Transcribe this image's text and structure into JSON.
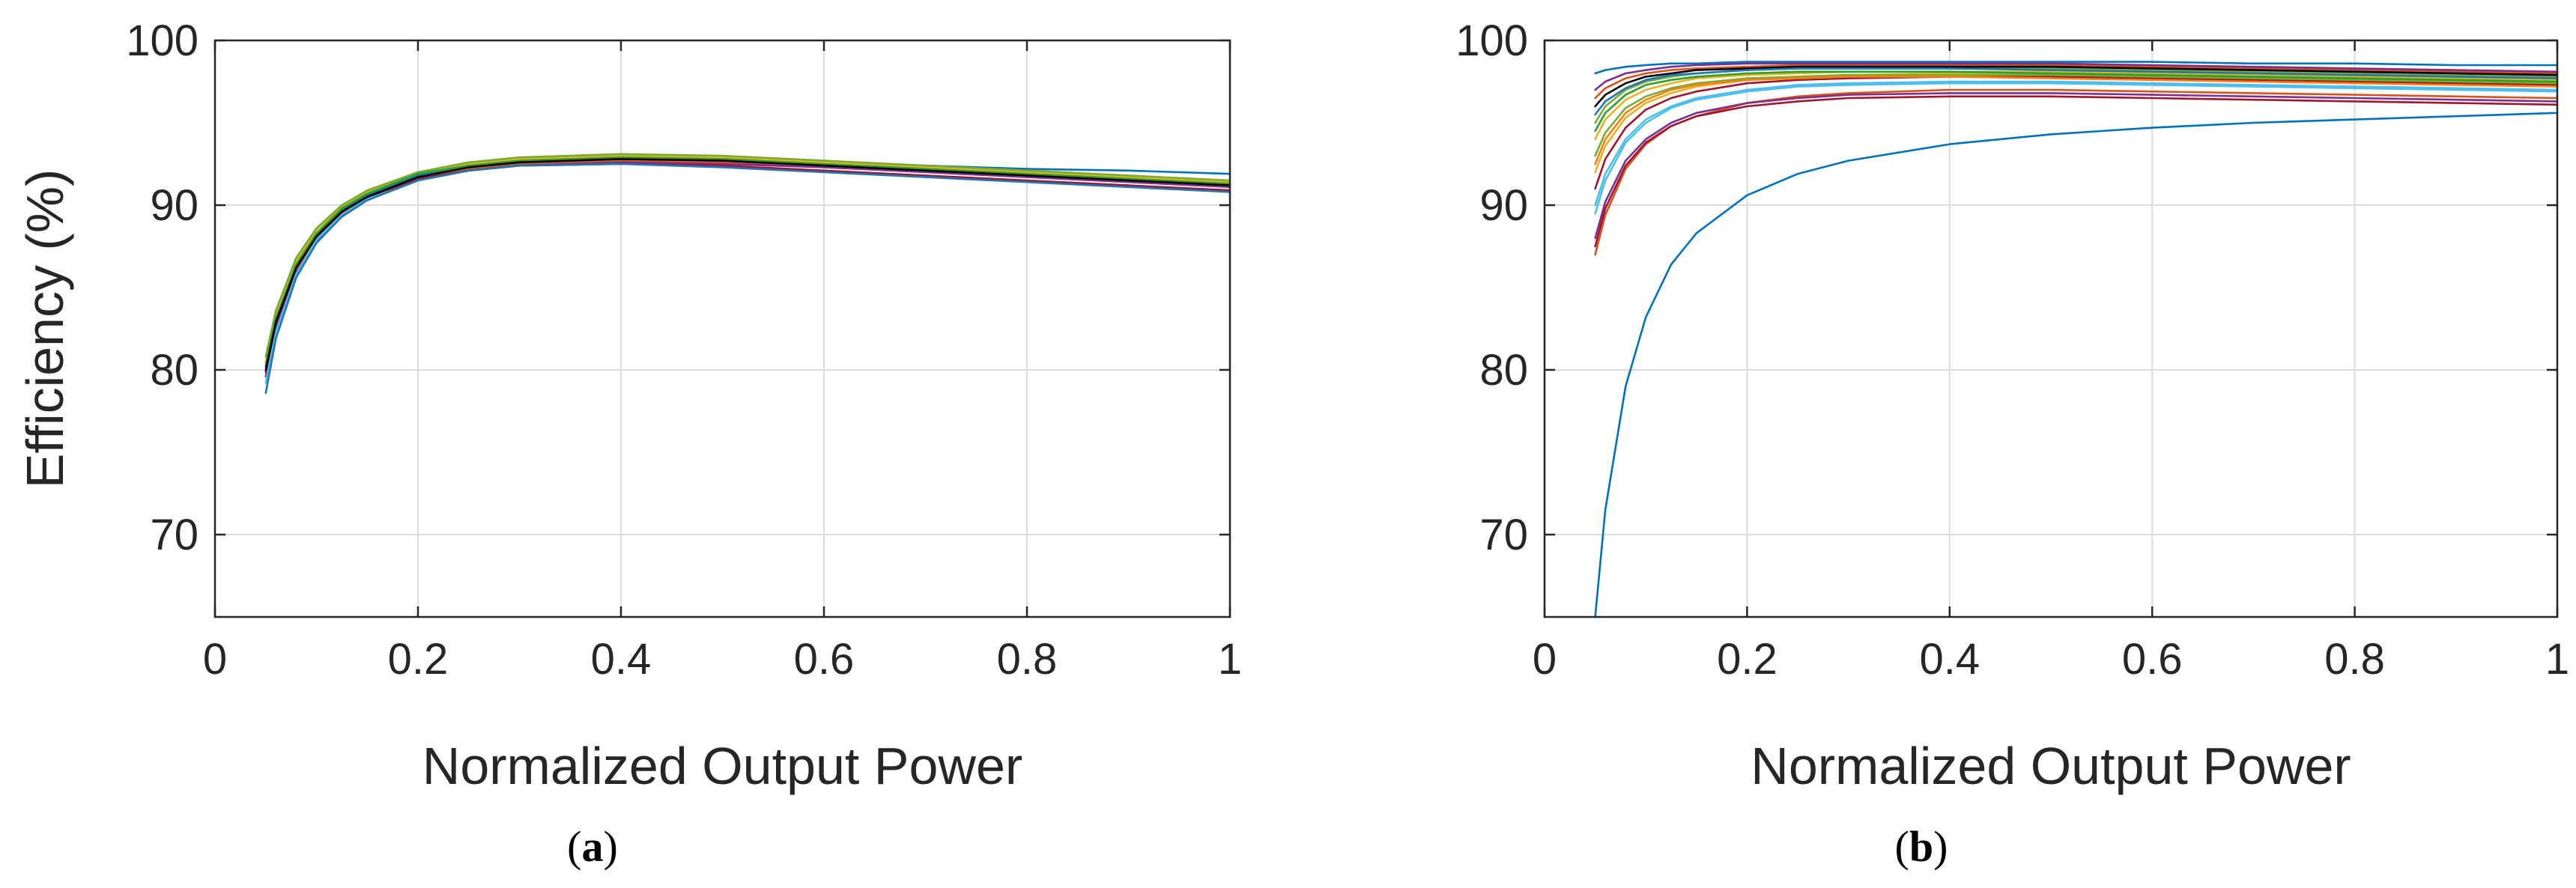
{
  "chart_data": [
    {
      "type": "line",
      "panel": "a",
      "title": "",
      "xlabel": "Normalized Output Power",
      "ylabel": "Efficiency (%)",
      "xlim": [
        0,
        1
      ],
      "ylim": [
        65,
        100
      ],
      "xticks": [
        0,
        0.2,
        0.4,
        0.6,
        0.8,
        1
      ],
      "xtick_labels": [
        "0",
        "0.2",
        "0.4",
        "0.6",
        "0.8",
        "1"
      ],
      "yticks": [
        70,
        80,
        90,
        100
      ],
      "ytick_labels": [
        "70",
        "80",
        "90",
        "100"
      ],
      "grid": true,
      "legend": false,
      "x": [
        0.05,
        0.06,
        0.08,
        0.1,
        0.125,
        0.15,
        0.2,
        0.25,
        0.3,
        0.4,
        0.5,
        0.6,
        0.7,
        0.8,
        0.9,
        1.0
      ],
      "series": [
        {
          "color": "#0072BD",
          "values": [
            80.2,
            83.0,
            86.3,
            88.2,
            89.7,
            90.6,
            91.8,
            92.4,
            92.7,
            92.9,
            92.8,
            92.6,
            92.4,
            92.2,
            92.1,
            91.9
          ]
        },
        {
          "color": "#D95319",
          "values": [
            79.8,
            82.7,
            86.1,
            88.0,
            89.5,
            90.4,
            91.6,
            92.2,
            92.5,
            92.7,
            92.6,
            92.4,
            92.1,
            91.9,
            91.6,
            91.4
          ]
        },
        {
          "color": "#EDB120",
          "values": [
            80.5,
            83.3,
            86.6,
            88.5,
            89.9,
            90.8,
            92.0,
            92.5,
            92.8,
            93.0,
            92.9,
            92.6,
            92.3,
            92.0,
            91.7,
            91.4
          ]
        },
        {
          "color": "#7E2F8E",
          "values": [
            79.6,
            82.5,
            85.9,
            87.8,
            89.3,
            90.3,
            91.5,
            92.1,
            92.4,
            92.6,
            92.5,
            92.3,
            92.0,
            91.7,
            91.4,
            91.1
          ]
        },
        {
          "color": "#77AC30",
          "values": [
            80.8,
            83.6,
            86.8,
            88.6,
            90.0,
            90.9,
            92.0,
            92.6,
            92.9,
            93.1,
            93.0,
            92.7,
            92.4,
            92.1,
            91.8,
            91.5
          ]
        },
        {
          "color": "#4DBEEE",
          "values": [
            79.2,
            82.3,
            85.8,
            87.9,
            89.4,
            90.4,
            91.7,
            92.3,
            92.6,
            92.8,
            92.7,
            92.4,
            92.1,
            91.8,
            91.5,
            91.2
          ]
        },
        {
          "color": "#A2142F",
          "values": [
            79.9,
            82.8,
            86.2,
            88.1,
            89.6,
            90.5,
            91.6,
            92.1,
            92.4,
            92.5,
            92.4,
            92.1,
            91.8,
            91.5,
            91.2,
            90.9
          ]
        },
        {
          "color": "#1f77b4",
          "values": [
            78.6,
            81.9,
            85.6,
            87.7,
            89.3,
            90.3,
            91.5,
            92.1,
            92.4,
            92.5,
            92.3,
            92.0,
            91.7,
            91.4,
            91.1,
            90.8
          ]
        },
        {
          "color": "#2ca02c",
          "values": [
            80.3,
            83.1,
            86.4,
            88.3,
            89.8,
            90.7,
            91.9,
            92.4,
            92.7,
            92.9,
            92.8,
            92.5,
            92.2,
            91.9,
            91.6,
            91.3
          ]
        },
        {
          "color": "#000000",
          "values": [
            80.0,
            82.9,
            86.2,
            88.1,
            89.6,
            90.5,
            91.7,
            92.3,
            92.6,
            92.8,
            92.7,
            92.4,
            92.1,
            91.8,
            91.5,
            91.2
          ]
        }
      ]
    },
    {
      "type": "line",
      "panel": "b",
      "title": "",
      "xlabel": "Normalized Output Power",
      "ylabel": "",
      "xlim": [
        0,
        1
      ],
      "ylim": [
        65,
        100
      ],
      "xticks": [
        0,
        0.2,
        0.4,
        0.6,
        0.8,
        1
      ],
      "xtick_labels": [
        "0",
        "0.2",
        "0.4",
        "0.6",
        "0.8",
        "1"
      ],
      "yticks": [
        70,
        80,
        90,
        100
      ],
      "ytick_labels": [
        "70",
        "80",
        "90",
        "100"
      ],
      "grid": true,
      "legend": false,
      "x": [
        0.05,
        0.06,
        0.08,
        0.1,
        0.125,
        0.15,
        0.2,
        0.25,
        0.3,
        0.4,
        0.5,
        0.6,
        0.7,
        0.8,
        0.9,
        1.0
      ],
      "series": [
        {
          "color": "#0072BD",
          "values": [
            65.0,
            71.5,
            79.0,
            83.2,
            86.4,
            88.3,
            90.6,
            91.9,
            92.7,
            93.7,
            94.3,
            94.7,
            95.0,
            95.2,
            95.4,
            95.6
          ]
        },
        {
          "color": "#D95319",
          "values": [
            87.0,
            89.4,
            92.2,
            93.7,
            94.8,
            95.4,
            96.2,
            96.6,
            96.8,
            97.0,
            97.0,
            96.9,
            96.8,
            96.7,
            96.6,
            96.5
          ]
        },
        {
          "color": "#EDB120",
          "values": [
            92.0,
            93.6,
            95.3,
            96.2,
            96.8,
            97.2,
            97.6,
            97.8,
            97.9,
            98.0,
            98.0,
            97.9,
            97.8,
            97.7,
            97.6,
            97.5
          ]
        },
        {
          "color": "#7E2F8E",
          "values": [
            88.0,
            90.2,
            92.7,
            94.0,
            95.0,
            95.6,
            96.2,
            96.5,
            96.7,
            96.8,
            96.8,
            96.7,
            96.6,
            96.5,
            96.4,
            96.3
          ]
        },
        {
          "color": "#77AC30",
          "values": [
            95.0,
            96.0,
            97.0,
            97.5,
            97.8,
            98.0,
            98.2,
            98.3,
            98.3,
            98.3,
            98.3,
            98.2,
            98.1,
            98.0,
            97.9,
            97.8
          ]
        },
        {
          "color": "#4DBEEE",
          "values": [
            90.0,
            91.9,
            94.0,
            95.2,
            96.0,
            96.5,
            97.0,
            97.3,
            97.4,
            97.5,
            97.5,
            97.4,
            97.3,
            97.2,
            97.1,
            97.0
          ]
        },
        {
          "color": "#A2142F",
          "values": [
            91.0,
            92.8,
            94.7,
            95.8,
            96.5,
            96.9,
            97.4,
            97.6,
            97.7,
            97.8,
            97.8,
            97.7,
            97.6,
            97.5,
            97.4,
            97.3
          ]
        },
        {
          "color": "#0072BD",
          "values": [
            98.0,
            98.2,
            98.4,
            98.5,
            98.6,
            98.6,
            98.7,
            98.7,
            98.7,
            98.7,
            98.7,
            98.7,
            98.6,
            98.6,
            98.5,
            98.5
          ]
        },
        {
          "color": "#D95319",
          "values": [
            96.5,
            97.1,
            97.7,
            98.0,
            98.2,
            98.3,
            98.4,
            98.5,
            98.5,
            98.5,
            98.5,
            98.4,
            98.3,
            98.2,
            98.1,
            98.0
          ]
        },
        {
          "color": "#EDB120",
          "values": [
            94.0,
            95.2,
            96.4,
            97.0,
            97.4,
            97.7,
            97.9,
            98.0,
            98.1,
            98.1,
            98.1,
            98.0,
            97.9,
            97.8,
            97.7,
            97.6
          ]
        },
        {
          "color": "#7E2F8E",
          "values": [
            97.0,
            97.5,
            98.0,
            98.2,
            98.4,
            98.5,
            98.6,
            98.6,
            98.6,
            98.6,
            98.6,
            98.5,
            98.4,
            98.3,
            98.2,
            98.1
          ]
        },
        {
          "color": "#77AC30",
          "values": [
            93.0,
            94.4,
            95.9,
            96.6,
            97.1,
            97.4,
            97.7,
            97.8,
            97.9,
            97.9,
            97.9,
            97.8,
            97.7,
            97.6,
            97.5,
            97.4
          ]
        },
        {
          "color": "#4DBEEE",
          "values": [
            89.5,
            91.5,
            93.8,
            95.0,
            95.9,
            96.4,
            96.9,
            97.2,
            97.3,
            97.4,
            97.4,
            97.3,
            97.2,
            97.1,
            97.0,
            96.9
          ]
        },
        {
          "color": "#A2142F",
          "values": [
            87.5,
            89.8,
            92.4,
            93.8,
            94.8,
            95.4,
            96.0,
            96.3,
            96.5,
            96.6,
            96.6,
            96.5,
            96.4,
            96.3,
            96.2,
            96.1
          ]
        },
        {
          "color": "#000000",
          "values": [
            96.0,
            96.7,
            97.4,
            97.8,
            98.0,
            98.2,
            98.3,
            98.4,
            98.4,
            98.4,
            98.4,
            98.3,
            98.2,
            98.1,
            98.0,
            97.9
          ]
        },
        {
          "color": "#1f77b4",
          "values": [
            95.5,
            96.3,
            97.1,
            97.6,
            97.9,
            98.0,
            98.2,
            98.3,
            98.3,
            98.3,
            98.2,
            98.1,
            98.0,
            97.9,
            97.8,
            97.7
          ]
        },
        {
          "color": "#2ca02c",
          "values": [
            94.5,
            95.6,
            96.7,
            97.3,
            97.6,
            97.8,
            98.0,
            98.1,
            98.1,
            98.1,
            98.0,
            97.9,
            97.8,
            97.7,
            97.6,
            97.5
          ]
        },
        {
          "color": "#ff7f0e",
          "values": [
            92.5,
            94.0,
            95.6,
            96.4,
            97.0,
            97.3,
            97.6,
            97.7,
            97.8,
            97.8,
            97.7,
            97.6,
            97.5,
            97.4,
            97.3,
            97.2
          ]
        }
      ]
    }
  ],
  "captions": [
    {
      "open": "(",
      "letter": "a",
      "close": ")"
    },
    {
      "open": "(",
      "letter": "b",
      "close": ")"
    }
  ]
}
